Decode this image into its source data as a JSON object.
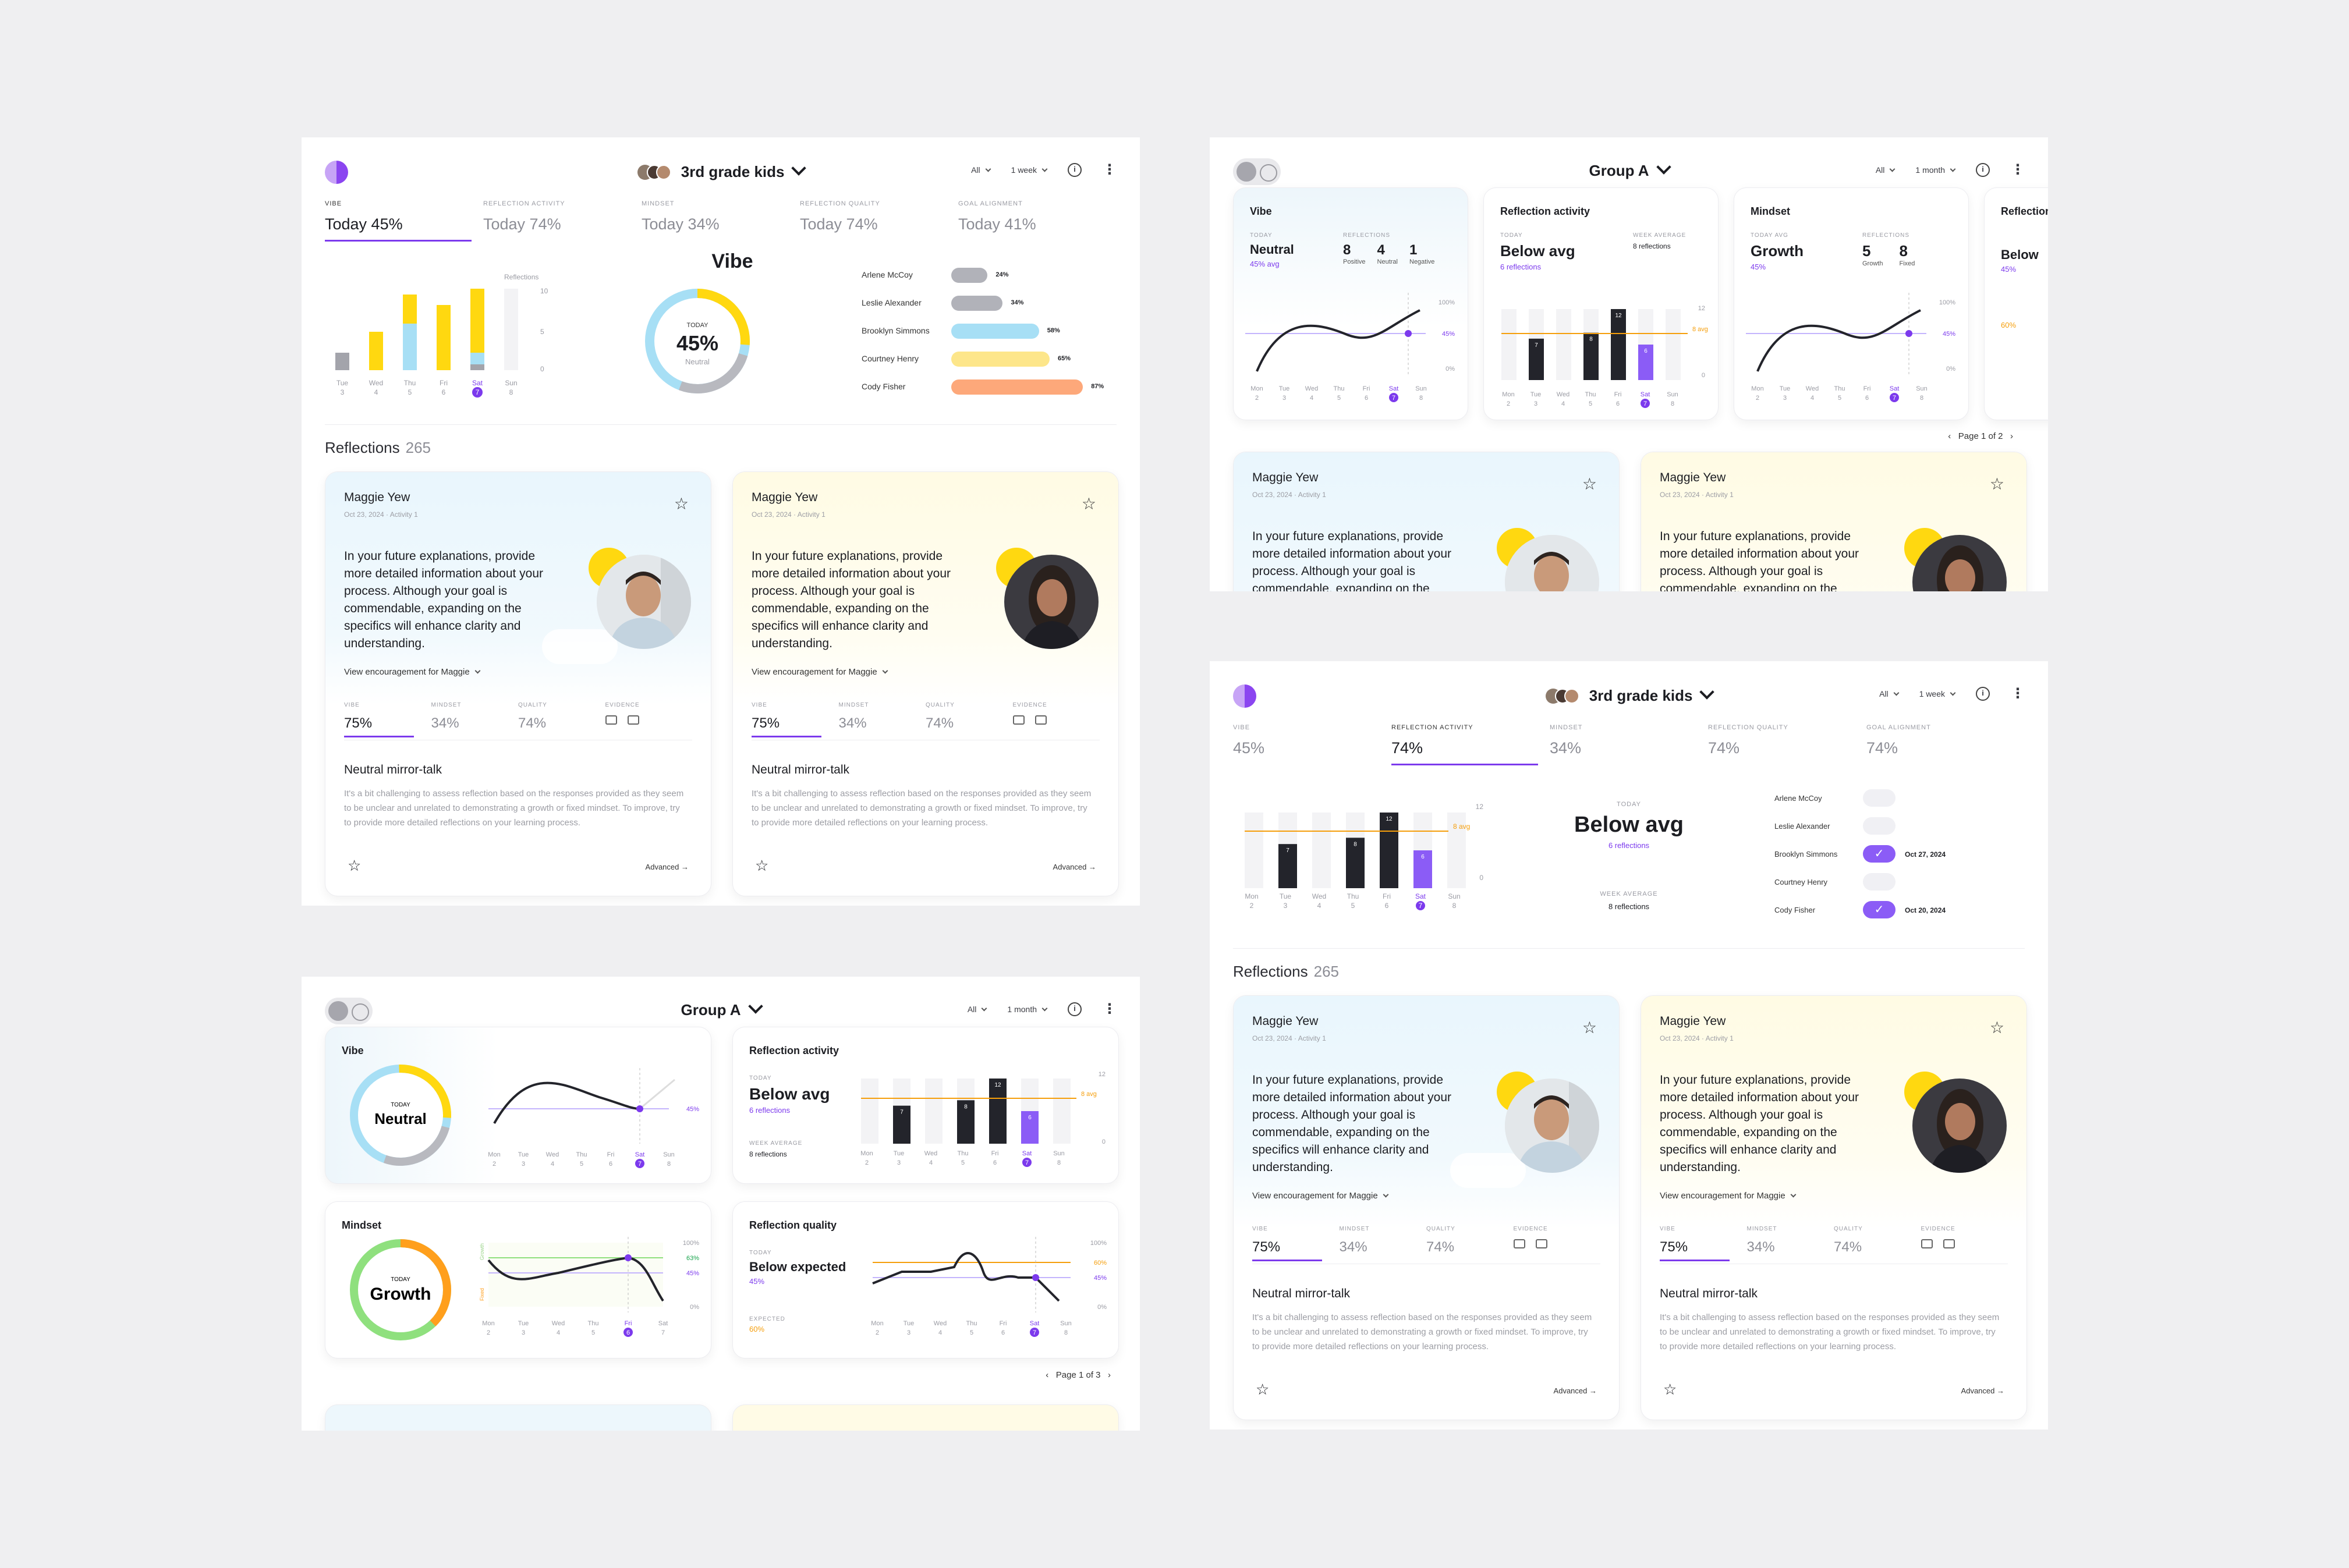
{
  "frame1": {
    "title": "3rd grade kids",
    "filter_all": "All",
    "filter_period": "1 week",
    "tabs": [
      {
        "key": "VIBE",
        "value": "Today 45%"
      },
      {
        "key": "REFLECTION ACTIVITY",
        "value": "Today 74%"
      },
      {
        "key": "MINDSET",
        "value": "Today 34%"
      },
      {
        "key": "REFLECTION QUALITY",
        "value": "Today 74%"
      },
      {
        "key": "GOAL ALIGNMENT",
        "value": "Today 41%"
      }
    ],
    "bar_axis_label": "Reflections",
    "bar_y_ticks": [
      "10",
      "5",
      "0"
    ],
    "days": [
      {
        "d": "Tue",
        "n": "3"
      },
      {
        "d": "Wed",
        "n": "4"
      },
      {
        "d": "Thu",
        "n": "5"
      },
      {
        "d": "Fri",
        "n": "6"
      },
      {
        "d": "Sat",
        "n": "7"
      },
      {
        "d": "Sun",
        "n": "8"
      }
    ],
    "vibe_title": "Vibe",
    "ring_top": "TODAY",
    "ring_value": "45%",
    "ring_bottom": "Neutral",
    "students": [
      {
        "name": "Arlene McCoy",
        "pct": "24%",
        "value": 24,
        "color": "#b1b2b9"
      },
      {
        "name": "Leslie Alexander",
        "pct": "34%",
        "value": 34,
        "color": "#b1b2b9"
      },
      {
        "name": "Brooklyn Simmons",
        "pct": "58%",
        "value": 58,
        "color": "#a7dff5"
      },
      {
        "name": "Courtney Henry",
        "pct": "65%",
        "value": 65,
        "color": "#fde68a"
      },
      {
        "name": "Cody Fisher",
        "pct": "87%",
        "value": 87,
        "color": "#fda87a"
      }
    ],
    "reflections_label": "Reflections",
    "reflections_count": "265"
  },
  "reflection_card": {
    "name": "Maggie Yew",
    "date": "Oct 23, 2024",
    "activity": "Activity 1",
    "quote": "In your future explanations, provide more detailed information about your process. Although your goal is commendable, expanding on the specifics will enhance clarity and understanding.",
    "encouragement": "View encouragement for Maggie",
    "metrics": [
      {
        "key": "VIBE",
        "value": "75%"
      },
      {
        "key": "MINDSET",
        "value": "34%"
      },
      {
        "key": "QUALITY",
        "value": "74%"
      },
      {
        "key": "EVIDENCE",
        "value": ""
      }
    ],
    "heading": "Neutral mirror-talk",
    "body": "It's a bit challenging to assess reflection based on the responses provided as they seem to be unclear and unrelated to demonstrating a growth or fixed mindset. To improve, try to provide more detailed reflections on your learning process.",
    "advanced": "Advanced"
  },
  "frame2": {
    "title": "Group A",
    "filter_all": "All",
    "filter_period": "1 month",
    "vibe_card": {
      "title": "Vibe",
      "today_key": "TODAY",
      "today_value": "Neutral",
      "today_sub": "45% avg",
      "refl_key": "REFLECTIONS",
      "counts": [
        {
          "n": "8",
          "l": "Positive"
        },
        {
          "n": "4",
          "l": "Neutral"
        },
        {
          "n": "1",
          "l": "Negative"
        }
      ],
      "pct_ticks": [
        "100%",
        "45%",
        "0%"
      ]
    },
    "activity_card": {
      "title": "Reflection activity",
      "today_key": "TODAY",
      "today_value": "Below avg",
      "today_sub": "6 reflections",
      "week_key": "WEEK AVERAGE",
      "week_value": "8 reflections",
      "bars": [
        {
          "v": 7,
          "label": "7"
        },
        {
          "v": 8,
          "label": "8"
        },
        {
          "v": 12,
          "label": "12"
        },
        {
          "v": 6,
          "label": "6"
        }
      ],
      "avg_label": "8 avg",
      "y_ticks": [
        "12",
        "8",
        "0"
      ]
    },
    "mindset_card": {
      "title": "Mindset",
      "today_key": "TODAY AVG",
      "today_value": "Growth",
      "today_sub": "45%",
      "refl_key": "REFLECTIONS",
      "counts": [
        {
          "n": "5",
          "l": "Growth"
        },
        {
          "n": "8",
          "l": "Fixed"
        }
      ]
    },
    "quality_card": {
      "title": "Reflection quality",
      "today_value": "Below",
      "today_sub": "45%",
      "expected": "60%"
    },
    "days": [
      {
        "d": "Mon",
        "n": "2"
      },
      {
        "d": "Tue",
        "n": "3"
      },
      {
        "d": "Wed",
        "n": "4"
      },
      {
        "d": "Thu",
        "n": "5"
      },
      {
        "d": "Fri",
        "n": "6"
      },
      {
        "d": "Sat",
        "n": "7"
      },
      {
        "d": "Sun",
        "n": "8"
      }
    ],
    "pager": "Page 1 of 2"
  },
  "frame3": {
    "title": "Group A",
    "filter_all": "All",
    "filter_period": "1 month",
    "vibe": {
      "title": "Vibe",
      "today_key": "TODAY",
      "value": "Neutral",
      "pct": "45%"
    },
    "activity": {
      "title": "Reflection activity",
      "today_key": "TODAY",
      "value": "Below avg",
      "sub": "6 reflections",
      "week_key": "WEEK AVERAGE",
      "week_value": "8 reflections",
      "avg_label": "8 avg",
      "y_ticks": [
        "12",
        "8",
        "0"
      ]
    },
    "mindset": {
      "title": "Mindset",
      "today_key": "TODAY",
      "value": "Growth",
      "pct_hi": "63%",
      "pct_lo": "45%",
      "side_hi": "Growth",
      "side_lo": "Fixed",
      "ticks": [
        "100%",
        "50%",
        "0%"
      ]
    },
    "quality": {
      "title": "Reflection quality",
      "today_key": "TODAY",
      "value": "Below expected",
      "sub": "45%",
      "expected_key": "EXPECTED",
      "expected_value": "60%",
      "pct_a": "60%",
      "pct_b": "45%",
      "ticks": [
        "100%",
        "50%",
        "0%"
      ]
    },
    "pager": "Page 1 of 3"
  },
  "frame4": {
    "title": "3rd grade kids",
    "filter_all": "All",
    "filter_period": "1 week",
    "tabs": [
      {
        "key": "VIBE",
        "value": "45%"
      },
      {
        "key": "REFLECTION ACTIVITY",
        "value": "74%"
      },
      {
        "key": "MINDSET",
        "value": "34%"
      },
      {
        "key": "REFLECTION QUALITY",
        "value": "74%"
      },
      {
        "key": "GOAL ALIGNMENT",
        "value": "74%"
      }
    ],
    "today_key": "TODAY",
    "today_value": "Below avg",
    "today_sub": "6 reflections",
    "week_key": "WEEK AVERAGE",
    "week_value": "8 reflections",
    "avg_label": "8 avg",
    "y_ticks": [
      "12",
      "8",
      "0"
    ],
    "checks": [
      {
        "name": "Arlene McCoy",
        "checked": false,
        "date": ""
      },
      {
        "name": "Leslie Alexander",
        "checked": false,
        "date": ""
      },
      {
        "name": "Brooklyn Simmons",
        "checked": true,
        "date": "Oct 27, 2024"
      },
      {
        "name": "Courtney Henry",
        "checked": false,
        "date": ""
      },
      {
        "name": "Cody Fisher",
        "checked": true,
        "date": "Oct 20, 2024"
      }
    ],
    "reflections_label": "Reflections",
    "reflections_count": "265"
  },
  "colors": {
    "accent": "#7c3aed",
    "yellow": "#ffd810",
    "orange": "#f59e0b",
    "dark": "#23242b"
  }
}
